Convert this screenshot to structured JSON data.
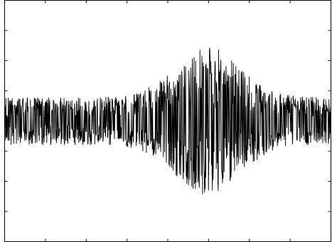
{
  "chart_data": {
    "type": "line",
    "title": "",
    "xlabel": "",
    "ylabel": "",
    "xlim": [
      0,
      1000
    ],
    "ylim": [
      -1,
      1
    ],
    "grid": false,
    "tick_labels_visible": false,
    "series": [
      {
        "color": "#000000",
        "shape": "noise burst",
        "sample_count": 1000,
        "baseline_amplitude": 0.2,
        "burst": {
          "start_x": 430,
          "end_x": 800,
          "peak_x": 620,
          "peak_amplitude": 0.62
        }
      }
    ]
  }
}
